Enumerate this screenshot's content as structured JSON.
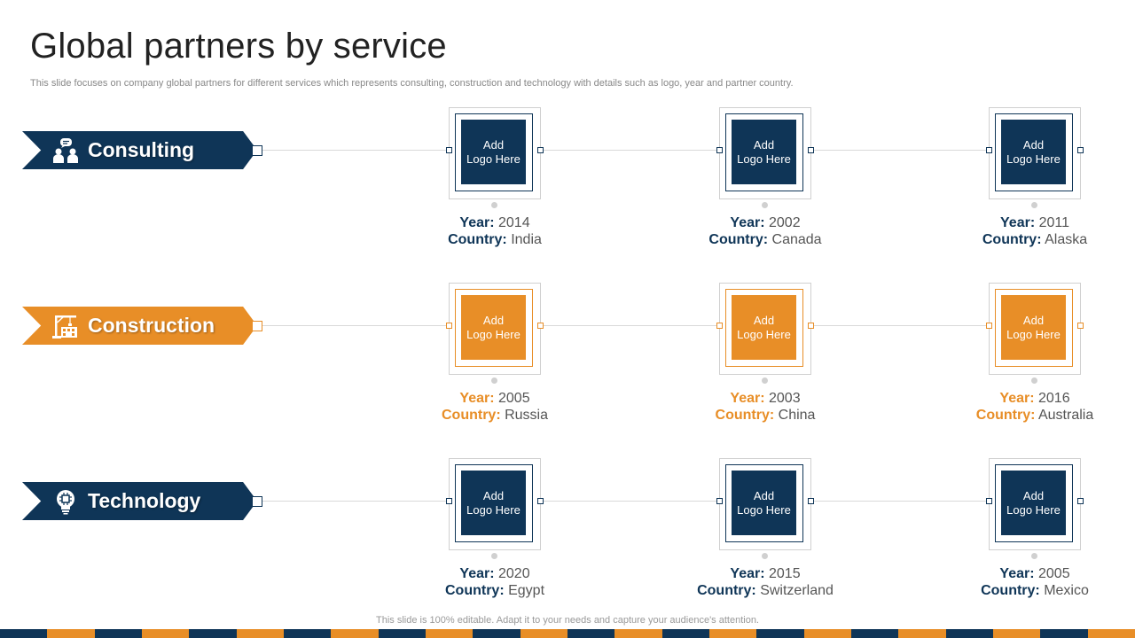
{
  "title": "Global partners by service",
  "subtitle": "This slide focuses on company global partners for different services which represents consulting, construction and technology with details such as logo, year and partner country.",
  "colors": {
    "navy": "#0f3557",
    "orange": "#e88e27"
  },
  "labels": {
    "year": "Year:",
    "country": "Country:"
  },
  "rows": [
    {
      "service": "Consulting",
      "icon": "consulting-people-icon",
      "partners": [
        {
          "logo_text": "Add Logo Here",
          "year": "2014",
          "country": "India"
        },
        {
          "logo_text": "Add Logo Here",
          "year": "2002",
          "country": "Canada"
        },
        {
          "logo_text": "Add Logo Here",
          "year": "2011",
          "country": "Alaska"
        }
      ]
    },
    {
      "service": "Construction",
      "icon": "construction-crane-icon",
      "partners": [
        {
          "logo_text": "Add Logo Here",
          "year": "2005",
          "country": "Russia"
        },
        {
          "logo_text": "Add Logo Here",
          "year": "2003",
          "country": "China"
        },
        {
          "logo_text": "Add Logo Here",
          "year": "2016",
          "country": "Australia"
        }
      ]
    },
    {
      "service": "Technology",
      "icon": "technology-bulb-icon",
      "partners": [
        {
          "logo_text": "Add Logo Here",
          "year": "2020",
          "country": "Egypt"
        },
        {
          "logo_text": "Add Logo Here",
          "year": "2015",
          "country": "Switzerland"
        },
        {
          "logo_text": "Add Logo Here",
          "year": "2005",
          "country": "Mexico"
        }
      ]
    }
  ],
  "footer": "This slide is 100% editable. Adapt it to your needs and capture your audience's attention."
}
